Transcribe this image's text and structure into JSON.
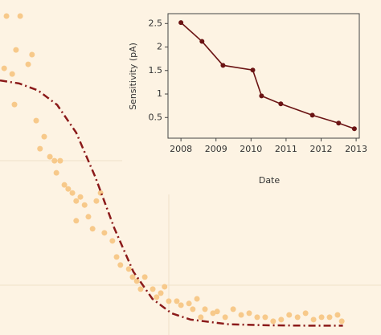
{
  "chart_data": [
    {
      "type": "scatter",
      "xlim": [
        0,
        10
      ],
      "ylim": [
        0,
        10
      ],
      "color": "#f7c98a",
      "x": [
        0.17,
        0.53,
        0.42,
        0.84,
        0.74,
        0.11,
        0.32,
        0.38,
        0.95,
        1.05,
        1.16,
        1.31,
        1.43,
        1.58,
        1.48,
        1.69,
        1.79,
        1.9,
        2.0,
        2.11,
        2.22,
        2.32,
        2.0,
        2.53,
        2.64,
        2.43,
        2.74,
        2.95,
        3.06,
        3.16,
        3.38,
        3.48,
        3.59,
        3.69,
        3.8,
        4.01,
        4.11,
        4.32,
        4.22,
        4.43,
        4.64,
        4.75,
        4.96,
        5.06,
        5.17,
        5.27,
        5.38,
        5.59,
        5.7,
        5.91,
        6.12,
        6.33,
        6.54,
        6.75,
        6.96,
        7.17,
        7.38,
        7.59,
        7.81,
        8.02,
        8.23,
        8.44,
        8.65,
        8.86,
        8.97
      ],
      "values": [
        9.52,
        9.52,
        8.51,
        8.37,
        8.08,
        7.96,
        7.79,
        6.88,
        6.4,
        5.56,
        5.92,
        5.32,
        5.2,
        5.2,
        4.84,
        4.48,
        4.36,
        4.24,
        4.0,
        4.12,
        3.88,
        3.53,
        3.41,
        4.0,
        4.24,
        3.17,
        3.05,
        2.81,
        2.33,
        2.09,
        1.97,
        1.73,
        1.61,
        1.37,
        1.73,
        1.37,
        1.13,
        1.44,
        1.25,
        1.01,
        1.01,
        0.89,
        0.94,
        0.77,
        1.08,
        0.53,
        0.77,
        0.65,
        0.7,
        0.53,
        0.77,
        0.6,
        0.65,
        0.53,
        0.53,
        0.41,
        0.46,
        0.6,
        0.53,
        0.65,
        0.46,
        0.53,
        0.53,
        0.6,
        0.41
      ],
      "fit": {
        "type": "line",
        "color": "#8b1a1a",
        "dash": "dashdot",
        "x": [
          0,
          0.5,
          1,
          1.5,
          2,
          2.5,
          3,
          3.5,
          4,
          4.5,
          5,
          6,
          7,
          8,
          9
        ],
        "values": [
          7.6,
          7.51,
          7.3,
          6.87,
          6.04,
          4.72,
          3.19,
          1.89,
          1.08,
          0.65,
          0.46,
          0.32,
          0.29,
          0.28,
          0.28
        ]
      }
    },
    {
      "type": "line",
      "xlabel": "Date",
      "ylabel": "Sensitivity (pA)",
      "color": "#6b1414",
      "x": [
        2008.0,
        2008.6,
        2009.2,
        2010.05,
        2010.3,
        2010.85,
        2011.75,
        2012.5,
        2012.95
      ],
      "values": [
        2.52,
        2.12,
        1.61,
        1.51,
        0.96,
        0.79,
        0.55,
        0.38,
        0.26
      ],
      "xlim": [
        2007.63,
        2013.09
      ],
      "ylim": [
        0.06,
        2.71
      ],
      "xticks": [
        2008,
        2009,
        2010,
        2011,
        2012,
        2013
      ],
      "yticks": [
        0.5,
        1,
        1.5,
        2,
        2.5
      ]
    }
  ]
}
